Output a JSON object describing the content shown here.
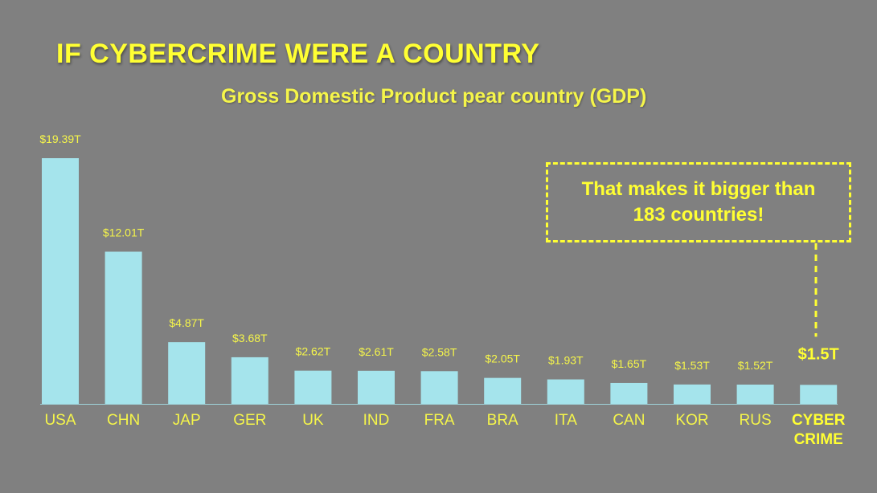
{
  "colors": {
    "background": "#808080",
    "bar": "#a5e4ec",
    "highlight": "#ffff33",
    "label": "#f5f54a"
  },
  "chart_data": {
    "type": "bar",
    "title": "IF CYBERCRIME WERE A COUNTRY",
    "subtitle": "Gross Domestic Product pear country (GDP)",
    "xlabel": "",
    "ylabel": "",
    "unit": "T",
    "grid": false,
    "legend": "none",
    "ylim": [
      0,
      20
    ],
    "categories": [
      "USA",
      "CHN",
      "JAP",
      "GER",
      "UK",
      "IND",
      "FRA",
      "BRA",
      "ITA",
      "CAN",
      "KOR",
      "RUS",
      "CYBER CRIME"
    ],
    "values": [
      19.39,
      12.01,
      4.87,
      3.68,
      2.62,
      2.61,
      2.58,
      2.05,
      1.93,
      1.65,
      1.53,
      1.52,
      1.5
    ],
    "data_labels": [
      "$19.39T",
      "$12.01T",
      "$4.87T",
      "$3.68T",
      "$2.62T",
      "$2.61T",
      "$2.58T",
      "$2.05T",
      "$1.93T",
      "$1.65T",
      "$1.53T",
      "$1.52T",
      "$1.5T"
    ],
    "highlight_category": "CYBER CRIME",
    "annotation": "That makes it bigger than 183 countries!"
  }
}
